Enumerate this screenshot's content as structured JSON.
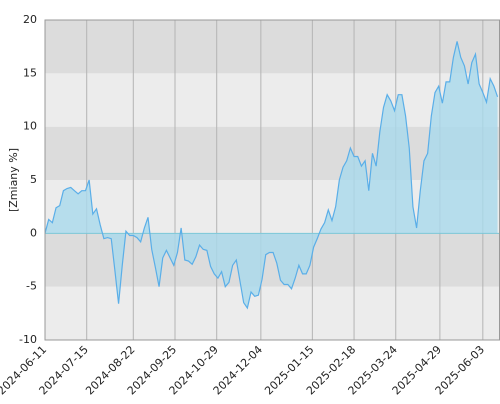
{
  "chart_data": {
    "type": "area",
    "ylabel": "[Zmiany %]",
    "color": "#5aaee8",
    "fill": "#a9d9ec",
    "band_colors": [
      "#ececec",
      "#dcdcdc"
    ],
    "grid": true,
    "xlim": [
      "2024-06-11",
      "2025-06-17"
    ],
    "xticks": [
      "2024-06-11",
      "2024-07-15",
      "2024-08-22",
      "2024-09-25",
      "2024-10-29",
      "2024-12-04",
      "2025-01-15",
      "2025-02-18",
      "2025-03-24",
      "2025-04-29",
      "2025-06-03"
    ],
    "ylim": [
      -10,
      20
    ],
    "yticks": [
      -10,
      -5,
      0,
      5,
      10,
      15,
      20
    ],
    "x": [
      "2024-06-11",
      "2024-06-14",
      "2024-06-17",
      "2024-06-20",
      "2024-06-23",
      "2024-06-26",
      "2024-06-29",
      "2024-07-02",
      "2024-07-05",
      "2024-07-08",
      "2024-07-11",
      "2024-07-14",
      "2024-07-17",
      "2024-07-20",
      "2024-07-23",
      "2024-07-26",
      "2024-07-29",
      "2024-08-01",
      "2024-08-04",
      "2024-08-07",
      "2024-08-10",
      "2024-08-13",
      "2024-08-16",
      "2024-08-19",
      "2024-08-22",
      "2024-08-25",
      "2024-08-28",
      "2024-08-31",
      "2024-09-03",
      "2024-09-06",
      "2024-09-09",
      "2024-09-12",
      "2024-09-15",
      "2024-09-18",
      "2024-09-21",
      "2024-09-24",
      "2024-09-27",
      "2024-09-30",
      "2024-10-03",
      "2024-10-06",
      "2024-10-09",
      "2024-10-12",
      "2024-10-15",
      "2024-10-18",
      "2024-10-21",
      "2024-10-24",
      "2024-10-27",
      "2024-10-30",
      "2024-11-02",
      "2024-11-05",
      "2024-11-08",
      "2024-11-11",
      "2024-11-14",
      "2024-11-17",
      "2024-11-20",
      "2024-11-23",
      "2024-11-26",
      "2024-11-29",
      "2024-12-02",
      "2024-12-05",
      "2024-12-08",
      "2024-12-11",
      "2024-12-14",
      "2024-12-17",
      "2024-12-20",
      "2024-12-23",
      "2024-12-26",
      "2024-12-29",
      "2025-01-01",
      "2025-01-04",
      "2025-01-07",
      "2025-01-10",
      "2025-01-13",
      "2025-01-16",
      "2025-01-19",
      "2025-01-22",
      "2025-01-25",
      "2025-01-28",
      "2025-01-31",
      "2025-02-03",
      "2025-02-06",
      "2025-02-09",
      "2025-02-12",
      "2025-02-15",
      "2025-02-18",
      "2025-02-21",
      "2025-02-24",
      "2025-02-27",
      "2025-03-02",
      "2025-03-05",
      "2025-03-08",
      "2025-03-11",
      "2025-03-14",
      "2025-03-17",
      "2025-03-20",
      "2025-03-23",
      "2025-03-26",
      "2025-03-29",
      "2025-04-01",
      "2025-04-04",
      "2025-04-07",
      "2025-04-10",
      "2025-04-13",
      "2025-04-16",
      "2025-04-19",
      "2025-04-22",
      "2025-04-25",
      "2025-04-28",
      "2025-05-01",
      "2025-05-04",
      "2025-05-07",
      "2025-05-10",
      "2025-05-13",
      "2025-05-16",
      "2025-05-19",
      "2025-05-22",
      "2025-05-25",
      "2025-05-28",
      "2025-05-31",
      "2025-06-03",
      "2025-06-06",
      "2025-06-09",
      "2025-06-12",
      "2025-06-15"
    ],
    "values": [
      0,
      1.3,
      1,
      2.4,
      2.6,
      4,
      4.2,
      4.3,
      4,
      3.7,
      4,
      4,
      5,
      1.8,
      2.3,
      0.8,
      -0.5,
      -0.4,
      -0.5,
      -3.5,
      -6.6,
      -3,
      0.2,
      -0.2,
      -0.2,
      -0.4,
      -0.8,
      0.5,
      1.5,
      -1.5,
      -3.2,
      -5,
      -2.3,
      -1.6,
      -2.3,
      -3,
      -1.8,
      0.5,
      -2.5,
      -2.6,
      -2.9,
      -2.2,
      -1.1,
      -1.5,
      -1.6,
      -3.1,
      -3.8,
      -4.2,
      -3.6,
      -5,
      -4.6,
      -3,
      -2.5,
      -4.5,
      -6.5,
      -7,
      -5.5,
      -5.9,
      -5.8,
      -4.3,
      -2,
      -1.8,
      -1.8,
      -2.8,
      -4.4,
      -4.8,
      -4.8,
      -5.2,
      -4.2,
      -3,
      -3.8,
      -3.8,
      -3,
      -1.3,
      -0.5,
      0.4,
      1,
      2.2,
      1.2,
      2.5,
      5,
      6.2,
      6.8,
      8,
      7.2,
      7.2,
      6.3,
      6.8,
      4,
      7.5,
      6.3,
      9.5,
      11.8,
      13,
      12.4,
      11.5,
      13,
      13,
      11,
      8,
      2.5,
      0.5,
      4,
      6.8,
      7.5,
      11,
      13.2,
      13.8,
      12.2,
      14.2,
      14.2,
      16.5,
      18,
      16.5,
      15.7,
      14,
      16,
      16.8,
      14,
      13.2,
      12.3,
      14.5,
      13.8,
      12.8
    ]
  }
}
